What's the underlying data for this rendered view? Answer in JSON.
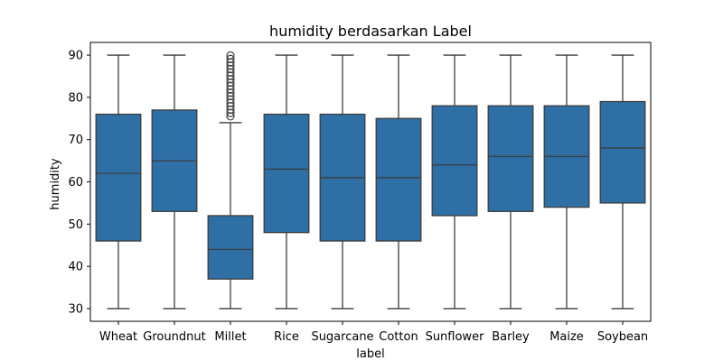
{
  "chart_data": {
    "type": "box",
    "title": "humidity berdasarkan Label",
    "xlabel": "label",
    "ylabel": "humidity",
    "ylim": [
      27,
      93
    ],
    "yticks": [
      30,
      40,
      50,
      60,
      70,
      80,
      90
    ],
    "grid": false,
    "legend": "none",
    "colors": {
      "box_fill": "#2e70a6",
      "line": "#3d3d3d",
      "outlier": "#3d3d3d"
    },
    "categories": [
      "Wheat",
      "Groundnut",
      "Millet",
      "Rice",
      "Sugarcane",
      "Cotton",
      "Sunflower",
      "Barley",
      "Maize",
      "Soybean"
    ],
    "boxes": [
      {
        "category": "Wheat",
        "whisker_low": 30,
        "q1": 46,
        "median": 62,
        "q3": 76,
        "whisker_high": 90,
        "outliers": []
      },
      {
        "category": "Groundnut",
        "whisker_low": 30,
        "q1": 53,
        "median": 65,
        "q3": 77,
        "whisker_high": 90,
        "outliers": []
      },
      {
        "category": "Millet",
        "whisker_low": 30,
        "q1": 37,
        "median": 44,
        "q3": 52,
        "whisker_high": 74,
        "outliers": [
          75.5,
          76.3,
          77.1,
          77.9,
          78.7,
          79.5,
          80.3,
          81.1,
          81.9,
          82.7,
          83.5,
          84.3,
          85.1,
          85.9,
          86.7,
          87.5,
          88.3,
          89.1,
          89.9
        ]
      },
      {
        "category": "Rice",
        "whisker_low": 30,
        "q1": 48,
        "median": 63,
        "q3": 76,
        "whisker_high": 90,
        "outliers": []
      },
      {
        "category": "Sugarcane",
        "whisker_low": 30,
        "q1": 46,
        "median": 61,
        "q3": 76,
        "whisker_high": 90,
        "outliers": []
      },
      {
        "category": "Cotton",
        "whisker_low": 30,
        "q1": 46,
        "median": 61,
        "q3": 75,
        "whisker_high": 90,
        "outliers": []
      },
      {
        "category": "Sunflower",
        "whisker_low": 30,
        "q1": 52,
        "median": 64,
        "q3": 78,
        "whisker_high": 90,
        "outliers": []
      },
      {
        "category": "Barley",
        "whisker_low": 30,
        "q1": 53,
        "median": 66,
        "q3": 78,
        "whisker_high": 90,
        "outliers": []
      },
      {
        "category": "Maize",
        "whisker_low": 30,
        "q1": 54,
        "median": 66,
        "q3": 78,
        "whisker_high": 90,
        "outliers": []
      },
      {
        "category": "Soybean",
        "whisker_low": 30,
        "q1": 55,
        "median": 68,
        "q3": 79,
        "whisker_high": 90,
        "outliers": []
      }
    ]
  }
}
